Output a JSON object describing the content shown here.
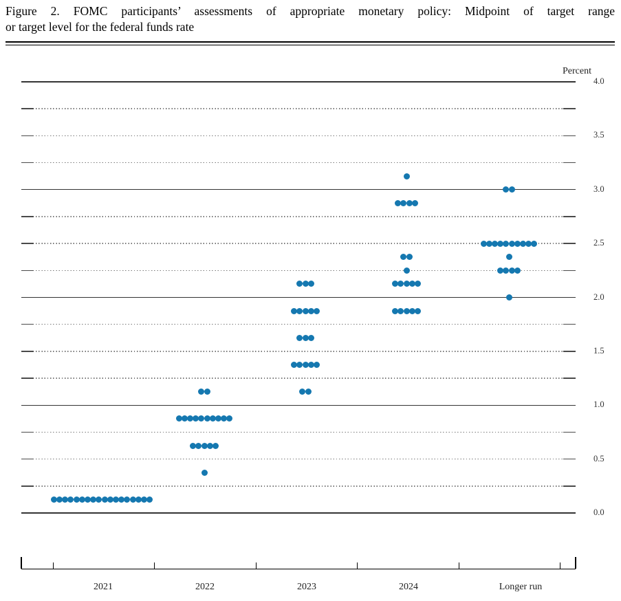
{
  "title": {
    "line1": "Figure 2.  FOMC participants’ assessments of appropriate monetary policy: Midpoint of target range",
    "line2": "or target level for the federal funds rate"
  },
  "chart_data": {
    "type": "scatter",
    "subtype": "fomc-dot-plot",
    "title": "FOMC participants’ assessments of appropriate monetary policy: Midpoint of target range or target level for the federal funds rate",
    "unit_label": "Percent",
    "ylim": [
      0.0,
      4.0
    ],
    "y_grid_step": 0.25,
    "y_label_step": 0.5,
    "y_tick_labels": [
      "4.0",
      "3.5",
      "3.0",
      "2.5",
      "2.0",
      "1.5",
      "1.0",
      "0.5",
      "0.0"
    ],
    "grid": true,
    "solid_gridlines_at_integers": true,
    "legend": "none",
    "categories": [
      "2021",
      "2022",
      "2023",
      "2024",
      "Longer run"
    ],
    "series": [
      {
        "category": "2021",
        "dots": [
          {
            "value": 0.125,
            "count": 18
          }
        ]
      },
      {
        "category": "2022",
        "dots": [
          {
            "value": 1.125,
            "count": 2
          },
          {
            "value": 0.875,
            "count": 10
          },
          {
            "value": 0.625,
            "count": 5
          },
          {
            "value": 0.375,
            "count": 1
          }
        ]
      },
      {
        "category": "2023",
        "dots": [
          {
            "value": 2.125,
            "count": 3
          },
          {
            "value": 1.875,
            "count": 5
          },
          {
            "value": 1.625,
            "count": 3
          },
          {
            "value": 1.375,
            "count": 5
          },
          {
            "value": 1.125,
            "count": 2
          }
        ]
      },
      {
        "category": "2024",
        "dots": [
          {
            "value": 3.125,
            "count": 1
          },
          {
            "value": 2.875,
            "count": 4
          },
          {
            "value": 2.375,
            "count": 2
          },
          {
            "value": 2.25,
            "count": 1
          },
          {
            "value": 2.125,
            "count": 5
          },
          {
            "value": 1.875,
            "count": 5
          }
        ]
      },
      {
        "category": "Longer run",
        "dots": [
          {
            "value": 3.0,
            "count": 2
          },
          {
            "value": 2.5,
            "count": 10
          },
          {
            "value": 2.375,
            "count": 1
          },
          {
            "value": 2.25,
            "count": 4
          },
          {
            "value": 2.0,
            "count": 1
          }
        ]
      }
    ],
    "colors": {
      "dot": "#1578b0",
      "solid_grid": "#333333",
      "dotted_grid": "#777777",
      "axis": "#000000"
    }
  }
}
